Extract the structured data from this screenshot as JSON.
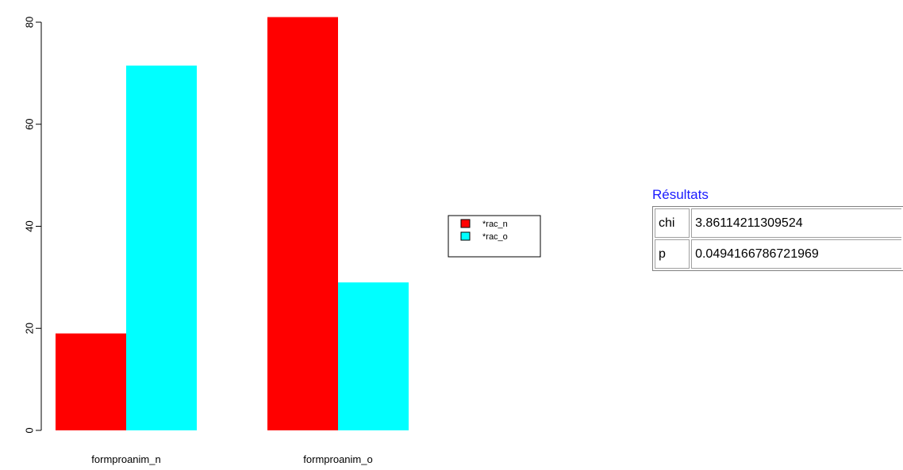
{
  "chart_data": {
    "type": "bar",
    "categories": [
      "formproanim_n",
      "formproanim_o"
    ],
    "series": [
      {
        "name": "*rac_n",
        "color": "#ff0000",
        "values": [
          19,
          81
        ]
      },
      {
        "name": "*rac_o",
        "color": "#00ffff",
        "values": [
          71.5,
          29
        ]
      }
    ],
    "y_ticks": [
      0,
      20,
      40,
      60,
      80
    ],
    "ylim": [
      0,
      83
    ],
    "title": "",
    "xlabel": "",
    "ylabel": "",
    "grid": false,
    "legend_position": "right"
  },
  "results": {
    "title": "Résultats",
    "rows": [
      {
        "key": "chi",
        "value": "3.86114211309524"
      },
      {
        "key": "p",
        "value": "0.0494166786721969"
      }
    ]
  }
}
